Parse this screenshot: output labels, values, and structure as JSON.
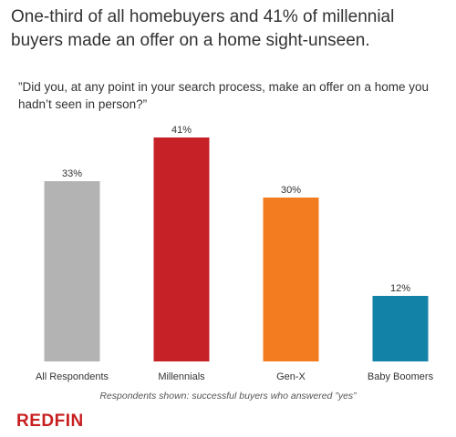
{
  "title": "One-third of all homebuyers and 41% of millennial buyers made an offer on a home sight-unseen.",
  "subtitle": "”Did you, at any point in your search process, make an offer on a home you hadn’t seen in person?”",
  "note": "Respondents shown: successful buyers who answered ”yes”",
  "logo": "REDFIN",
  "chart_data": {
    "type": "bar",
    "categories": [
      "All Respondents",
      "Millennials",
      "Gen-X",
      "Baby Boomers"
    ],
    "values": [
      33,
      41,
      30,
      12
    ],
    "labels": [
      "33%",
      "41%",
      "30%",
      "12%"
    ],
    "colors": [
      "#b3b3b3",
      "#c62127",
      "#f47c20",
      "#1283a6"
    ],
    "title": "",
    "xlabel": "",
    "ylabel": "",
    "ylim": [
      0,
      41
    ],
    "grid": false,
    "legend": "none"
  }
}
